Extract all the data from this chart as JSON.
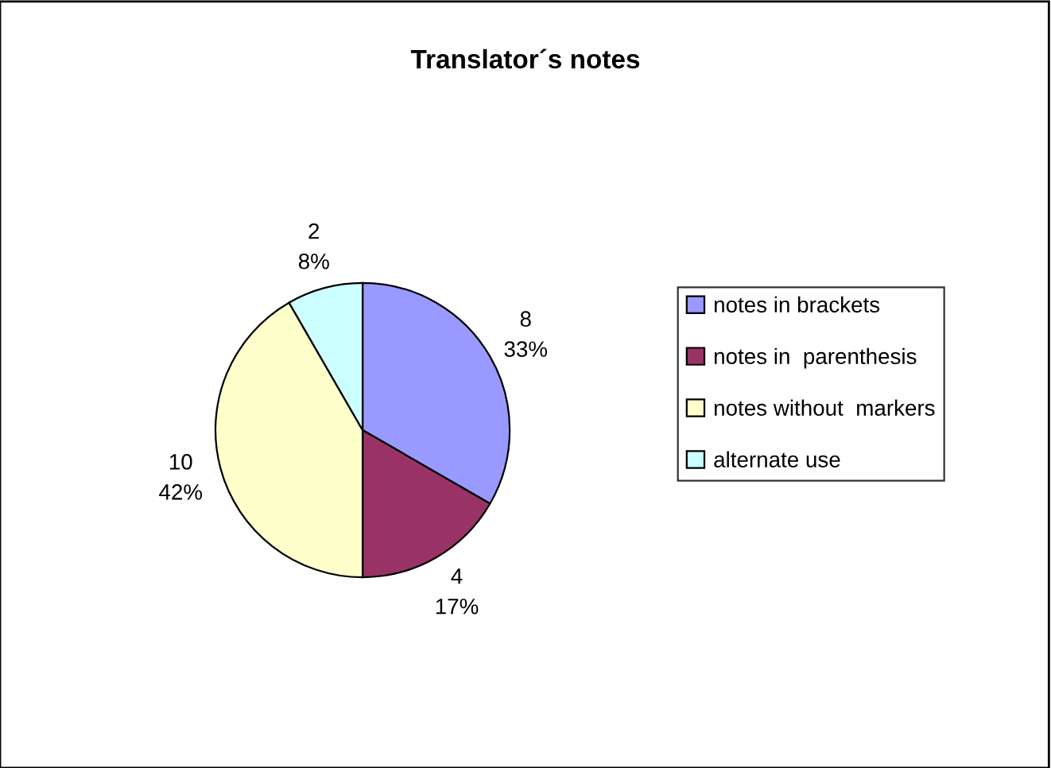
{
  "chart_data": {
    "type": "pie",
    "title": "Translator´s notes",
    "categories": [
      "notes in brackets",
      "notes in  parenthesis",
      "notes without  markers",
      "alternate use"
    ],
    "values": [
      8,
      4,
      10,
      2
    ],
    "value_labels": [
      "8\n33%",
      "4\n17%",
      "10\n42%",
      "2\n8%"
    ],
    "colors": [
      "#9999ff",
      "#993366",
      "#ffffcc",
      "#ccffff"
    ],
    "legend": "right"
  }
}
